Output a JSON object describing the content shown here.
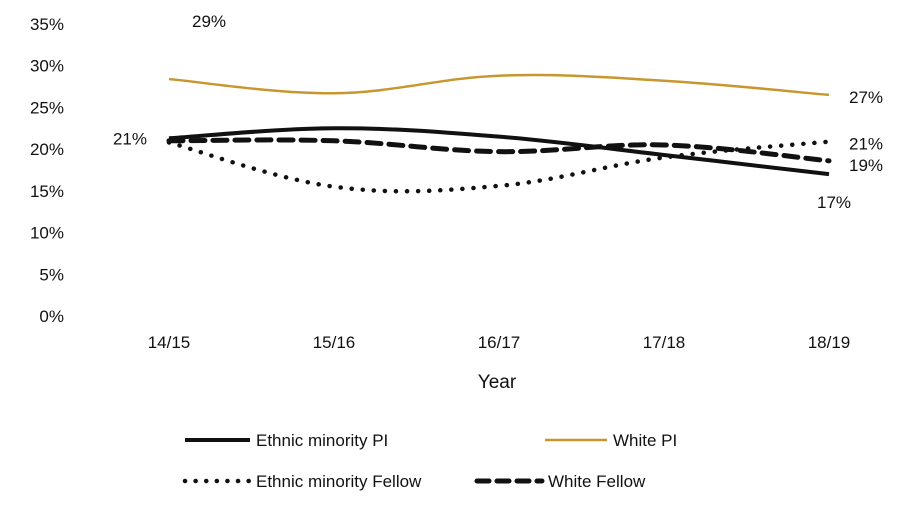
{
  "chart_data": {
    "type": "line",
    "title": "",
    "xlabel": "Year",
    "ylabel": "",
    "categories": [
      "14/15",
      "15/16",
      "16/17",
      "17/18",
      "18/19"
    ],
    "ylim": [
      0,
      35
    ],
    "yticks": [
      0,
      5,
      10,
      15,
      20,
      25,
      30,
      35
    ],
    "ytick_labels": [
      "0%",
      "5%",
      "10%",
      "15%",
      "20%",
      "25%",
      "30%",
      "35%"
    ],
    "grid": false,
    "legend_position": "bottom",
    "series": [
      {
        "name": "Ethnic minority PI",
        "style": "solid",
        "color": "#111111",
        "values": [
          21.3,
          22.5,
          21.5,
          19.3,
          17.0
        ]
      },
      {
        "name": "White PI",
        "style": "solid-thin",
        "color": "#c8962e",
        "values": [
          28.4,
          26.7,
          28.8,
          28.2,
          26.5
        ]
      },
      {
        "name": "Ethnic minority Fellow",
        "style": "dotted",
        "color": "#111111",
        "values": [
          20.8,
          15.5,
          15.6,
          19.0,
          20.9
        ]
      },
      {
        "name": "White Fellow",
        "style": "dashed",
        "color": "#111111",
        "values": [
          21.0,
          21.0,
          19.7,
          20.5,
          18.6
        ]
      }
    ],
    "annotations": [
      {
        "text": "29%",
        "series": "White PI",
        "category": "14/15"
      },
      {
        "text": "21%",
        "series": "Ethnic minority PI",
        "category": "14/15"
      },
      {
        "text": "27%",
        "series": "White PI",
        "category": "18/19"
      },
      {
        "text": "21%",
        "series": "Ethnic minority Fellow",
        "category": "18/19"
      },
      {
        "text": "19%",
        "series": "White Fellow",
        "category": "18/19"
      },
      {
        "text": "17%",
        "series": "Ethnic minority PI",
        "category": "18/19"
      }
    ]
  }
}
